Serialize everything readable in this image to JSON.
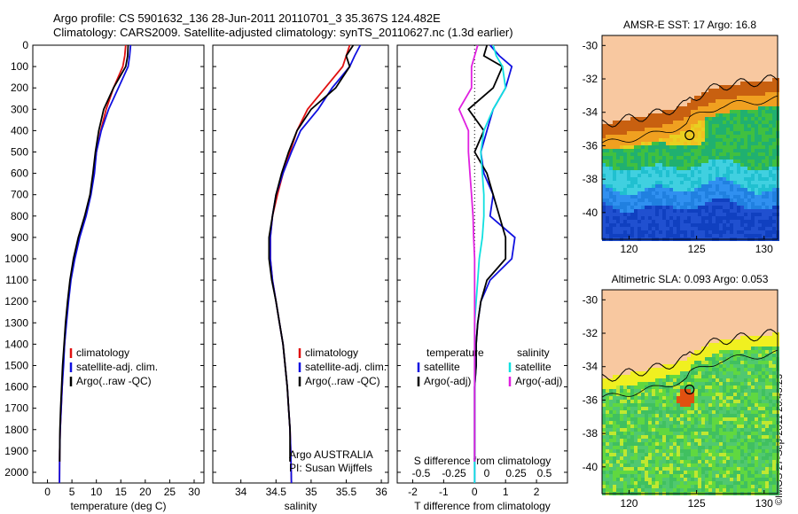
{
  "header": {
    "title_line1": "Argo profile: CS 5901632_136 28-Jun-2011 20110701_3 35.367S 124.482E",
    "title_line2": "Climatology: CARS2009. Satellite-adjusted climatology: synTS_20110627.nc (1.3d earlier)"
  },
  "credit": "©IMOS 27-Sep-2011 20:45:23",
  "colors": {
    "climatology": "#e01010",
    "satellite": "#1010e0",
    "argo": "#000000",
    "sal_satellite": "#10e0e0",
    "sal_argo": "#e020e0",
    "land": "#f8c8a0"
  },
  "chart_data": [
    {
      "type": "line",
      "xlabel": "temperature (deg C)",
      "ylabel": "",
      "xlim": [
        -3,
        32
      ],
      "ylim": [
        2050,
        0
      ],
      "xticks": [
        0,
        5,
        10,
        15,
        20,
        25,
        30
      ],
      "yticks": [
        0,
        100,
        200,
        300,
        400,
        500,
        600,
        700,
        800,
        900,
        1000,
        1100,
        1200,
        1300,
        1400,
        1500,
        1600,
        1700,
        1800,
        1900,
        2000
      ],
      "legend": [
        "climatology",
        "satellite-adj. clim.",
        "Argo(..raw -QC)"
      ],
      "legend_placement": "center",
      "series": [
        {
          "name": "climatology",
          "color": "climatology",
          "x": [
            16.0,
            15.8,
            15.4,
            13.5,
            12.0,
            10.9,
            10.0,
            9.5,
            8.8,
            7.8,
            6.5,
            5.5,
            4.7,
            4.2,
            3.8,
            3.5,
            3.2,
            3.0,
            2.8,
            2.6,
            2.5,
            2.45
          ],
          "y": [
            0,
            50,
            100,
            200,
            300,
            400,
            500,
            600,
            700,
            800,
            900,
            1000,
            1100,
            1200,
            1300,
            1400,
            1500,
            1600,
            1700,
            1800,
            1900,
            2050
          ]
        },
        {
          "name": "satellite-adj. clim.",
          "color": "satellite",
          "x": [
            17.0,
            16.8,
            16.5,
            14.5,
            12.5,
            11.0,
            10.0,
            9.6,
            8.9,
            7.9,
            6.6,
            5.6,
            4.8,
            4.3,
            3.9,
            3.5,
            3.3,
            3.0,
            2.8,
            2.6,
            2.5,
            2.45
          ],
          "y": [
            0,
            50,
            100,
            200,
            300,
            400,
            500,
            600,
            700,
            800,
            900,
            1000,
            1100,
            1200,
            1300,
            1400,
            1500,
            1600,
            1700,
            1800,
            1900,
            2050
          ]
        },
        {
          "name": "Argo(..raw -QC)",
          "color": "argo",
          "x": [
            16.5,
            16.4,
            16.0,
            13.5,
            11.5,
            10.5,
            9.8,
            9.3,
            8.7,
            7.6,
            6.3,
            5.3,
            4.6,
            4.1,
            3.7,
            3.4,
            3.1,
            2.9,
            2.7,
            2.55,
            2.5
          ],
          "y": [
            0,
            50,
            100,
            200,
            300,
            400,
            500,
            600,
            700,
            800,
            900,
            1000,
            1100,
            1200,
            1300,
            1400,
            1500,
            1600,
            1700,
            1800,
            1950
          ]
        }
      ]
    },
    {
      "type": "line",
      "xlabel": "salinity",
      "xlim": [
        33.6,
        36.1
      ],
      "ylim": [
        2050,
        0
      ],
      "xticks": [
        34,
        34.5,
        35,
        35.5,
        36
      ],
      "legend": [
        "climatology",
        "satellite-adj. clim.",
        "Argo(..raw -QC)"
      ],
      "legend_placement": "center",
      "annotations": [
        "Argo AUSTRALIA",
        "PI: Susan Wijffels"
      ],
      "series": [
        {
          "name": "climatology",
          "color": "climatology",
          "x": [
            35.55,
            35.5,
            35.45,
            35.2,
            34.95,
            34.8,
            34.7,
            34.6,
            34.52,
            34.45,
            34.42,
            34.42,
            34.45,
            34.5,
            34.55,
            34.6,
            34.63,
            34.66,
            34.68,
            34.7,
            34.71,
            34.72
          ],
          "y": [
            0,
            50,
            100,
            200,
            300,
            400,
            500,
            600,
            700,
            800,
            900,
            1000,
            1100,
            1200,
            1300,
            1400,
            1500,
            1600,
            1700,
            1800,
            1900,
            2050
          ]
        },
        {
          "name": "satellite-adj. clim.",
          "color": "satellite",
          "x": [
            35.7,
            35.62,
            35.55,
            35.3,
            35.1,
            34.85,
            34.72,
            34.6,
            34.5,
            34.45,
            34.42,
            34.42,
            34.45,
            34.5,
            34.55,
            34.6,
            34.63,
            34.66,
            34.68,
            34.7,
            34.71,
            34.72
          ],
          "y": [
            0,
            50,
            100,
            200,
            300,
            400,
            500,
            600,
            700,
            800,
            900,
            1000,
            1100,
            1200,
            1300,
            1400,
            1500,
            1600,
            1700,
            1800,
            1900,
            2050
          ]
        },
        {
          "name": "Argo(..raw -QC)",
          "color": "argo",
          "x": [
            35.6,
            35.5,
            35.55,
            35.35,
            35.0,
            34.8,
            34.68,
            34.58,
            34.5,
            34.45,
            34.4,
            34.4,
            34.44,
            34.5,
            34.55,
            34.6,
            34.63,
            34.66,
            34.68,
            34.7,
            34.7
          ],
          "y": [
            0,
            50,
            100,
            200,
            300,
            400,
            500,
            600,
            700,
            800,
            900,
            1000,
            1100,
            1200,
            1300,
            1400,
            1500,
            1600,
            1700,
            1800,
            1950
          ]
        }
      ]
    },
    {
      "type": "line",
      "xlabel": "T difference from climatology",
      "xlabel_top": "S difference from climatology",
      "xlim": [
        -2.5,
        3
      ],
      "ylim": [
        2050,
        0
      ],
      "xticks_bottom": [
        "-2",
        "-1",
        "0",
        "1",
        "2"
      ],
      "xticks_top": [
        "-0.5",
        "-0.25",
        "0",
        "0.25",
        "0.5"
      ],
      "legend": [
        "temperature",
        "satellite",
        "Argo(-adj)",
        "salinity",
        "satellite",
        "Argo(-adj)"
      ],
      "legend_placement": "center",
      "series": [
        {
          "name": "satellite",
          "group": "temperature",
          "color": "satellite",
          "x": [
            0.5,
            0.8,
            1.2,
            1.0,
            0.6,
            0.4,
            0.2,
            0.3,
            0.6,
            0.5,
            1.3,
            1.2,
            0.5,
            0.2,
            0.1,
            0.05,
            0.05,
            0.0,
            0.0,
            0.0,
            0.0
          ],
          "y": [
            0,
            50,
            100,
            200,
            300,
            400,
            500,
            600,
            700,
            800,
            900,
            1000,
            1100,
            1200,
            1300,
            1400,
            1500,
            1600,
            1700,
            1800,
            2050
          ]
        },
        {
          "name": "Argo(-adj)",
          "group": "temperature",
          "color": "argo",
          "x": [
            0.4,
            0.3,
            0.9,
            0.6,
            -0.2,
            0.3,
            0.0,
            0.4,
            0.6,
            0.8,
            1.0,
            1.0,
            0.4,
            0.2,
            0.1,
            0.05,
            0.05,
            0.0,
            0.0,
            0.0
          ],
          "y": [
            0,
            50,
            100,
            200,
            300,
            400,
            500,
            600,
            700,
            800,
            900,
            1000,
            1100,
            1200,
            1300,
            1400,
            1500,
            1600,
            1700,
            1950
          ]
        },
        {
          "name": "satellite",
          "group": "salinity",
          "color": "sal_satellite",
          "x": [
            0.6,
            0.7,
            0.9,
            1.0,
            0.6,
            0.3,
            0.2,
            0.25,
            0.3,
            0.3,
            0.25,
            0.15,
            0.1,
            0.05,
            0.0,
            0.0,
            0.0,
            0.0,
            0.0,
            0.0,
            0.0
          ],
          "y": [
            0,
            50,
            100,
            200,
            300,
            400,
            500,
            600,
            700,
            800,
            900,
            1000,
            1100,
            1200,
            1300,
            1400,
            1500,
            1600,
            1700,
            1800,
            2050
          ]
        },
        {
          "name": "Argo(-adj)",
          "group": "salinity",
          "color": "sal_argo",
          "x": [
            0.1,
            0.0,
            -0.1,
            -0.1,
            -0.5,
            -0.2,
            -0.2,
            -0.15,
            -0.1,
            -0.05,
            -0.03,
            0.0,
            0.0,
            0.0,
            0.0,
            0.0,
            0.0,
            0.0,
            0.0,
            0.0
          ],
          "y": [
            0,
            50,
            100,
            200,
            300,
            400,
            500,
            600,
            700,
            800,
            900,
            1000,
            1100,
            1200,
            1300,
            1400,
            1500,
            1600,
            1700,
            1950
          ]
        }
      ]
    },
    {
      "type": "heatmap",
      "title": "AMSR-E SST: 17 Argo: 16.8",
      "xlim": [
        118,
        131
      ],
      "ylim": [
        -41.6,
        -29.4
      ],
      "xticks": [
        120,
        125,
        130
      ],
      "yticks": [
        -30,
        -32,
        -34,
        -36,
        -38,
        -40
      ],
      "marker": {
        "lon": 124.482,
        "lat": -35.367
      },
      "palette": "sst"
    },
    {
      "type": "heatmap",
      "title": "Altimetric SLA: 0.093 Argo: 0.053",
      "xlim": [
        118,
        131
      ],
      "ylim": [
        -41.6,
        -29.4
      ],
      "xticks": [
        120,
        125,
        130
      ],
      "yticks": [
        -30,
        -32,
        -34,
        -36,
        -38,
        -40
      ],
      "marker": {
        "lon": 124.482,
        "lat": -35.367
      },
      "palette": "sla"
    }
  ]
}
